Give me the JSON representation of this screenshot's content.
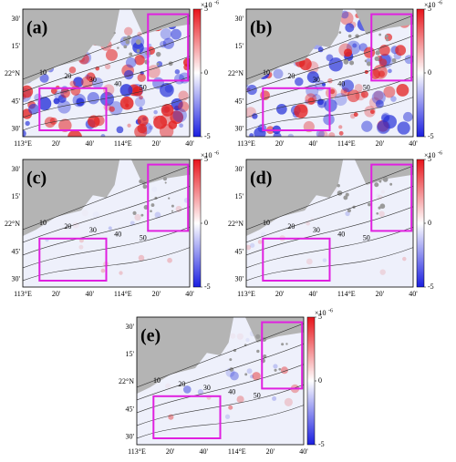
{
  "panels": [
    {
      "label": "(a)"
    },
    {
      "label": "(b)"
    },
    {
      "label": "(c)"
    },
    {
      "label": "(d)"
    },
    {
      "label": "(e)"
    }
  ],
  "lat_ticks": [
    "30'",
    "15'",
    "22°N",
    "45'",
    "30'"
  ],
  "lon_ticks": [
    "113°E",
    "20'",
    "40'",
    "114°E",
    "20'",
    "40'"
  ],
  "colorbar": {
    "multiplier": "×10",
    "exponent": "-6",
    "ticks": [
      5,
      0,
      -5
    ],
    "lim": [
      -5,
      5
    ]
  },
  "contour_labels": [
    "10",
    "20",
    "30",
    "40",
    "50"
  ]
}
